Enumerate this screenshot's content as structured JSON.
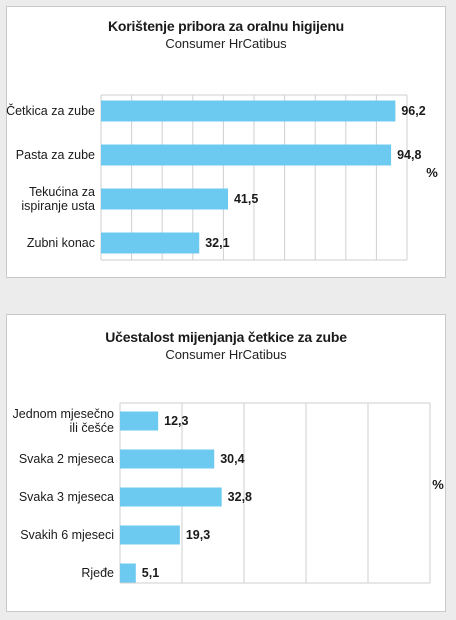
{
  "chart_data": [
    {
      "type": "bar",
      "orientation": "horizontal",
      "title": "Korištenje pribora za oralnu higijenu",
      "subtitle": "Consumer HrCatibus",
      "unit": "%",
      "categories": [
        [
          "Četkica za zube"
        ],
        [
          "Pasta za zube"
        ],
        [
          "Tekućina za",
          "ispiranje usta"
        ],
        [
          "Zubni konac"
        ]
      ],
      "values": [
        96.2,
        94.8,
        41.5,
        32.1
      ],
      "value_labels": [
        "96,2",
        "94,8",
        "41,5",
        "32,1"
      ],
      "xlim": [
        0,
        100
      ],
      "grid": true,
      "bar_color": "#6ccaf0"
    },
    {
      "type": "bar",
      "orientation": "horizontal",
      "title": "Učestalost mijenjanja četkice za zube",
      "subtitle": "Consumer HrCatibus",
      "unit": "%",
      "categories": [
        [
          "Jednom mjesečno",
          "ili češće"
        ],
        [
          "Svaka 2 mjeseca"
        ],
        [
          "Svaka 3 mjeseca"
        ],
        [
          "Svakih 6 mjeseci"
        ],
        [
          "Rjeđe"
        ]
      ],
      "values": [
        12.3,
        30.4,
        32.8,
        19.3,
        5.1
      ],
      "value_labels": [
        "12,3",
        "30,4",
        "32,8",
        "19,3",
        "5,1"
      ],
      "xlim": [
        0,
        100
      ],
      "grid": true,
      "bar_color": "#6ccaf0"
    }
  ]
}
